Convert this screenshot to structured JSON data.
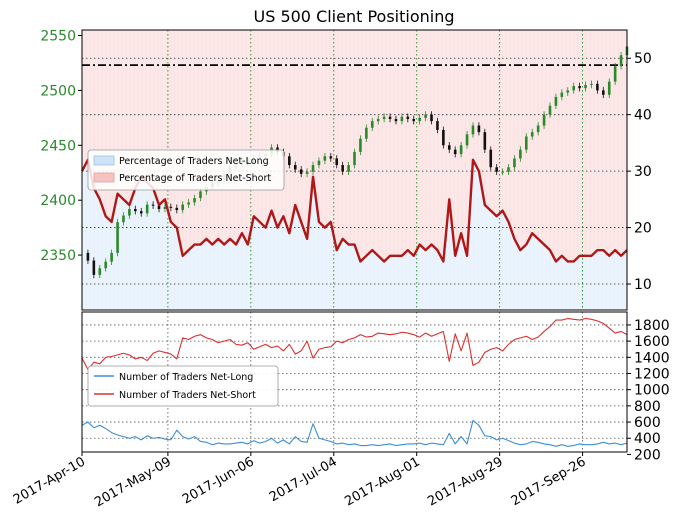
{
  "chart_data": [
    {
      "type": "line",
      "title": "US 500 Client Positioning",
      "x_tick_labels": [
        "2017-Apr-10",
        "2017-May-09",
        "2017-Jun-06",
        "2017-Jul-04",
        "2017-Aug-01",
        "2017-Aug-29",
        "2017-Sep-26"
      ],
      "x_tick_days": [
        0,
        29,
        57,
        85,
        113,
        141,
        169
      ],
      "x_range_days": [
        0,
        184
      ],
      "left_axis": {
        "ylim": [
          2300,
          2555
        ],
        "ticks": [
          2350,
          2400,
          2450,
          2500,
          2550
        ],
        "color": "#2a8a2a"
      },
      "right_axis": {
        "ylim": [
          5.4,
          55
        ],
        "ticks": [
          10,
          20,
          30,
          40,
          50
        ]
      },
      "grid": true,
      "legend": {
        "placement": "center-left",
        "entries": [
          "Percentage of Traders Net-Long",
          "Percentage of Traders Net-Short"
        ]
      },
      "reference_line": {
        "value": 2523,
        "style": "dash-dot",
        "color": "#000000"
      },
      "price_series": {
        "name": "US 500",
        "day": [
          0,
          2,
          4,
          6,
          8,
          10,
          12,
          14,
          16,
          18,
          20,
          22,
          24,
          26,
          28,
          30,
          32,
          34,
          36,
          38,
          40,
          42,
          44,
          46,
          48,
          50,
          52,
          54,
          56,
          58,
          60,
          62,
          64,
          66,
          68,
          70,
          72,
          74,
          76,
          78,
          80,
          82,
          84,
          86,
          88,
          90,
          92,
          94,
          96,
          98,
          100,
          102,
          104,
          106,
          108,
          110,
          112,
          114,
          116,
          118,
          120,
          122,
          124,
          126,
          128,
          130,
          132,
          134,
          136,
          138,
          140,
          142,
          144,
          146,
          148,
          150,
          152,
          154,
          156,
          158,
          160,
          162,
          164,
          166,
          168,
          170,
          172,
          174,
          176,
          178,
          180,
          182,
          184
        ],
        "value": [
          2352,
          2345,
          2332,
          2338,
          2344,
          2352,
          2380,
          2386,
          2392,
          2390,
          2388,
          2396,
          2395,
          2392,
          2394,
          2393,
          2391,
          2396,
          2398,
          2402,
          2408,
          2412,
          2416,
          2418,
          2424,
          2430,
          2432,
          2436,
          2434,
          2438,
          2440,
          2442,
          2448,
          2444,
          2440,
          2432,
          2428,
          2424,
          2426,
          2432,
          2436,
          2440,
          2438,
          2432,
          2426,
          2432,
          2444,
          2456,
          2466,
          2472,
          2474,
          2476,
          2474,
          2472,
          2476,
          2474,
          2472,
          2475,
          2478,
          2472,
          2464,
          2450,
          2446,
          2442,
          2450,
          2460,
          2468,
          2462,
          2446,
          2430,
          2426,
          2426,
          2430,
          2438,
          2446,
          2458,
          2462,
          2468,
          2478,
          2486,
          2494,
          2498,
          2500,
          2504,
          2502,
          2505,
          2506,
          2500,
          2496,
          2508,
          2522,
          2532,
          2540
        ]
      },
      "net_long_percent": {
        "name": "Percentage of Traders Net-Long",
        "day": [
          0,
          2,
          4,
          6,
          8,
          10,
          12,
          14,
          16,
          18,
          20,
          22,
          24,
          26,
          28,
          30,
          32,
          34,
          36,
          38,
          40,
          42,
          44,
          46,
          48,
          50,
          52,
          54,
          56,
          58,
          60,
          62,
          64,
          66,
          68,
          70,
          72,
          74,
          76,
          78,
          80,
          82,
          84,
          86,
          88,
          90,
          92,
          94,
          96,
          98,
          100,
          102,
          104,
          106,
          108,
          110,
          112,
          114,
          116,
          118,
          120,
          122,
          124,
          126,
          128,
          130,
          132,
          134,
          136,
          138,
          140,
          142,
          144,
          146,
          148,
          150,
          152,
          154,
          156,
          158,
          160,
          162,
          164,
          166,
          168,
          170,
          172,
          174,
          176,
          178,
          180,
          182,
          184
        ],
        "value": [
          30,
          32,
          27,
          25,
          22,
          21,
          26,
          25,
          24,
          27,
          29,
          28,
          27,
          24,
          25,
          21,
          20,
          15,
          16,
          17,
          17,
          18,
          17,
          18,
          17,
          18,
          17,
          19,
          17,
          22,
          21,
          20,
          23,
          20,
          22,
          19,
          24,
          21,
          18,
          29,
          21,
          20,
          21,
          16,
          18,
          17,
          17,
          14,
          15,
          16,
          15,
          14,
          15,
          15,
          15,
          16,
          15,
          17,
          16,
          17,
          16,
          14,
          25,
          15,
          19,
          15,
          32,
          30,
          24,
          23,
          22,
          23,
          21,
          18,
          16,
          17,
          19,
          18,
          17,
          16,
          14,
          15,
          14,
          14,
          15,
          15,
          15,
          16,
          16,
          15,
          16,
          15,
          16
        ]
      }
    },
    {
      "type": "line",
      "x_tick_labels": [
        "2017-Apr-10",
        "2017-May-09",
        "2017-Jun-06",
        "2017-Jul-04",
        "2017-Aug-01",
        "2017-Aug-29",
        "2017-Sep-26"
      ],
      "x_tick_days": [
        0,
        29,
        57,
        85,
        113,
        141,
        169
      ],
      "x_range_days": [
        0,
        184
      ],
      "ylim": [
        230,
        1960
      ],
      "y_ticks": [
        200,
        400,
        600,
        800,
        1000,
        1200,
        1400,
        1600,
        1800
      ],
      "grid": true,
      "legend": {
        "placement": "left",
        "entries": [
          "Number of Traders Net-Long",
          "Number of Traders Net-Short"
        ]
      },
      "series": [
        {
          "name": "Number of Traders Net-Long",
          "color": "#3b8fd8",
          "day": [
            0,
            2,
            4,
            6,
            8,
            10,
            12,
            14,
            16,
            18,
            20,
            22,
            24,
            26,
            28,
            30,
            32,
            34,
            36,
            38,
            40,
            42,
            44,
            46,
            48,
            50,
            52,
            54,
            56,
            58,
            60,
            62,
            64,
            66,
            68,
            70,
            72,
            74,
            76,
            78,
            80,
            82,
            84,
            86,
            88,
            90,
            92,
            94,
            96,
            98,
            100,
            102,
            104,
            106,
            108,
            110,
            112,
            114,
            116,
            118,
            120,
            122,
            124,
            126,
            128,
            130,
            132,
            134,
            136,
            138,
            140,
            142,
            144,
            146,
            148,
            150,
            152,
            154,
            156,
            158,
            160,
            162,
            164,
            166,
            168,
            170,
            172,
            174,
            176,
            178,
            180,
            182,
            184
          ],
          "value": [
            560,
            600,
            530,
            560,
            520,
            470,
            440,
            420,
            400,
            420,
            380,
            430,
            400,
            410,
            390,
            380,
            500,
            420,
            390,
            420,
            360,
            350,
            320,
            340,
            330,
            330,
            340,
            350,
            330,
            370,
            340,
            360,
            400,
            340,
            380,
            330,
            420,
            360,
            350,
            580,
            400,
            380,
            360,
            330,
            340,
            320,
            330,
            310,
            310,
            320,
            310,
            320,
            330,
            310,
            320,
            330,
            330,
            340,
            320,
            340,
            330,
            320,
            460,
            330,
            420,
            330,
            620,
            560,
            430,
            420,
            380,
            400,
            370,
            340,
            320,
            330,
            360,
            350,
            330,
            320,
            300,
            320,
            300,
            310,
            330,
            320,
            320,
            330,
            350,
            330,
            340,
            320,
            340
          ]
        },
        {
          "name": "Number of Traders Net-Short",
          "color": "#d93030",
          "day": [
            0,
            2,
            4,
            6,
            8,
            10,
            12,
            14,
            16,
            18,
            20,
            22,
            24,
            26,
            28,
            30,
            32,
            34,
            36,
            38,
            40,
            42,
            44,
            46,
            48,
            50,
            52,
            54,
            56,
            58,
            60,
            62,
            64,
            66,
            68,
            70,
            72,
            74,
            76,
            78,
            80,
            82,
            84,
            86,
            88,
            90,
            92,
            94,
            96,
            98,
            100,
            102,
            104,
            106,
            108,
            110,
            112,
            114,
            116,
            118,
            120,
            122,
            124,
            126,
            128,
            130,
            132,
            134,
            136,
            138,
            140,
            142,
            144,
            146,
            148,
            150,
            152,
            154,
            156,
            158,
            160,
            162,
            164,
            166,
            168,
            170,
            172,
            174,
            176,
            178,
            180,
            182,
            184
          ],
          "value": [
            1390,
            1250,
            1340,
            1320,
            1400,
            1410,
            1430,
            1450,
            1430,
            1380,
            1400,
            1360,
            1450,
            1480,
            1460,
            1440,
            1380,
            1640,
            1620,
            1660,
            1680,
            1640,
            1620,
            1580,
            1600,
            1620,
            1560,
            1550,
            1580,
            1500,
            1530,
            1560,
            1520,
            1540,
            1480,
            1560,
            1440,
            1480,
            1600,
            1390,
            1500,
            1520,
            1530,
            1600,
            1580,
            1620,
            1640,
            1680,
            1650,
            1660,
            1700,
            1690,
            1680,
            1690,
            1710,
            1700,
            1680,
            1650,
            1700,
            1660,
            1690,
            1720,
            1350,
            1690,
            1480,
            1700,
            1300,
            1340,
            1460,
            1500,
            1520,
            1480,
            1560,
            1620,
            1640,
            1660,
            1620,
            1650,
            1720,
            1780,
            1860,
            1860,
            1880,
            1870,
            1860,
            1880,
            1870,
            1850,
            1820,
            1760,
            1700,
            1720,
            1680
          ]
        }
      ]
    }
  ]
}
